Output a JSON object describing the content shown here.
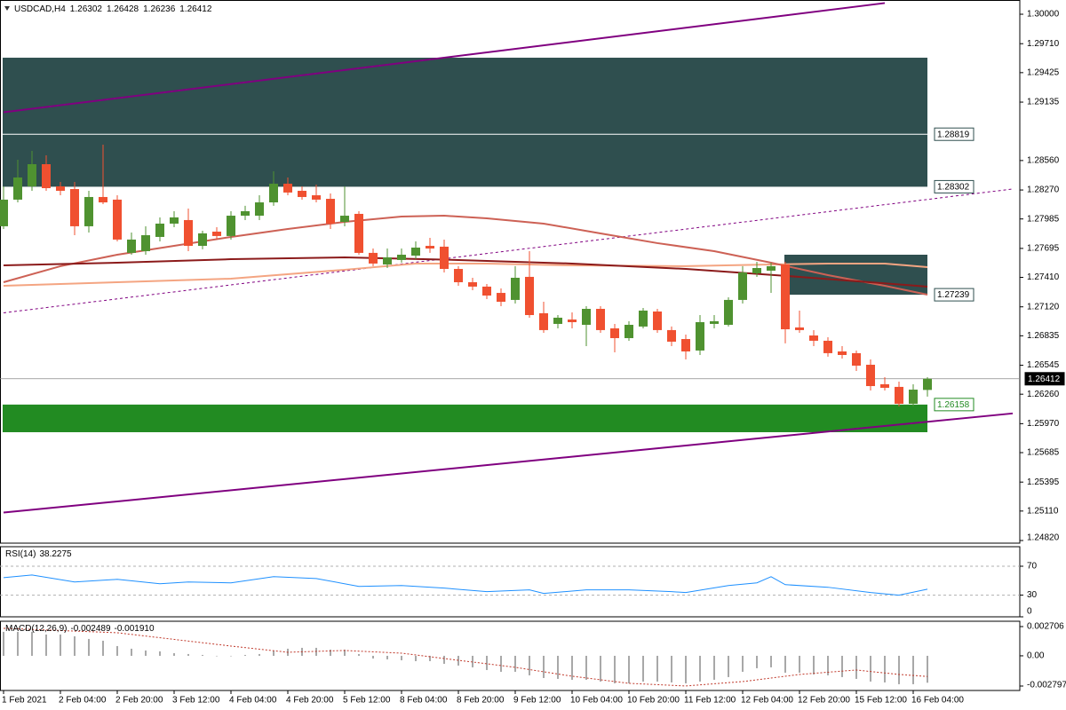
{
  "chart_data": [
    {
      "type": "candlestick",
      "symbol": "USDCAD,H4",
      "categories": [
        "1 Feb 2021",
        null,
        null,
        null,
        "2 Feb 04:00",
        null,
        null,
        null,
        "2 Feb 20:00",
        null,
        null,
        null,
        "3 Feb 12:00",
        null,
        null,
        null,
        "4 Feb 04:00",
        null,
        null,
        null,
        "4 Feb 20:00",
        null,
        null,
        null,
        "5 Feb 12:00",
        null,
        null,
        null,
        "8 Feb 04:00",
        null,
        null,
        null,
        "8 Feb 20:00",
        null,
        null,
        null,
        "9 Feb 12:00",
        null,
        null,
        null,
        "10 Feb 04:00",
        null,
        null,
        null,
        "10 Feb 20:00",
        null,
        null,
        null,
        "11 Feb 12:00",
        null,
        null,
        null,
        "12 Feb 04:00",
        null,
        null,
        null,
        "12 Feb 20:00",
        null,
        null,
        null,
        "15 Feb 12:00",
        null,
        null,
        null,
        "16 Feb 04:00",
        null
      ],
      "open": [
        1.27913,
        1.28175,
        1.28306,
        1.28524,
        1.28306,
        1.28279,
        1.27913,
        1.28201,
        1.28175,
        1.27651,
        1.27668,
        1.27808,
        1.27939,
        1.27974,
        1.2772,
        1.2786,
        1.27817,
        1.28017,
        1.28017,
        1.28148,
        1.28332,
        1.28262,
        1.28218,
        1.28183,
        1.27956,
        1.28035,
        1.27651,
        1.27537,
        1.27581,
        1.27624,
        1.2772,
        1.27712,
        1.27493,
        1.27362,
        1.27319,
        1.27257,
        1.27188,
        1.27415,
        1.27057,
        1.26952,
        1.26995,
        1.26943,
        1.271,
        1.26908,
        1.26812,
        1.26926,
        1.27074,
        1.26891,
        1.26803,
        1.2669,
        1.26952,
        1.26943,
        1.27188,
        1.2745,
        1.27476,
        1.27537,
        1.26917,
        1.26838,
        1.26786,
        1.26681,
        1.26664,
        1.2655,
        1.26358,
        1.26332,
        1.26166,
        1.26302
      ],
      "high": [
        1.28306,
        1.28568,
        1.28655,
        1.28611,
        1.28349,
        1.28349,
        1.28262,
        1.28716,
        1.28218,
        1.27851,
        1.27913,
        1.28,
        1.28061,
        1.28087,
        1.27869,
        1.27904,
        1.28061,
        1.28114,
        1.28218,
        1.28454,
        1.28393,
        1.28306,
        1.28323,
        1.28236,
        1.28306,
        1.28061,
        1.27694,
        1.27694,
        1.27694,
        1.27764,
        1.27799,
        1.27782,
        1.2752,
        1.27406,
        1.27345,
        1.27301,
        1.2752,
        1.27668,
        1.2717,
        1.27039,
        1.27065,
        1.27126,
        1.27126,
        1.26952,
        1.26978,
        1.27109,
        1.271,
        1.26926,
        1.26847,
        1.27039,
        1.27039,
        1.27214,
        1.2752,
        1.27563,
        1.27554,
        1.27563,
        1.27083,
        1.26891,
        1.26821,
        1.26733,
        1.2669,
        1.26602,
        1.26428,
        1.26384,
        1.26358,
        1.26428
      ],
      "low": [
        1.27886,
        1.28148,
        1.28262,
        1.28262,
        1.28218,
        1.27825,
        1.27851,
        1.28131,
        1.27764,
        1.27633,
        1.27633,
        1.27764,
        1.27904,
        1.27668,
        1.27686,
        1.27782,
        1.27782,
        1.27974,
        1.27974,
        1.28114,
        1.28218,
        1.28175,
        1.28148,
        1.27886,
        1.27913,
        1.27633,
        1.2752,
        1.27502,
        1.27554,
        1.27589,
        1.27651,
        1.27458,
        1.27327,
        1.27284,
        1.27196,
        1.27126,
        1.27153,
        1.27013,
        1.26864,
        1.26908,
        1.26908,
        1.26733,
        1.26864,
        1.26672,
        1.26786,
        1.26908,
        1.26864,
        1.26733,
        1.26602,
        1.26646,
        1.26908,
        1.26926,
        1.27153,
        1.27415,
        1.27257,
        1.2676,
        1.26864,
        1.26733,
        1.26629,
        1.26611,
        1.26489,
        1.26297,
        1.26297,
        1.26139,
        1.26139,
        1.26236
      ],
      "close": [
        1.28175,
        1.28393,
        1.28524,
        1.28288,
        1.28262,
        1.27913,
        1.28201,
        1.28148,
        1.27782,
        1.27782,
        1.27825,
        1.27939,
        1.28,
        1.2772,
        1.27843,
        1.27817,
        1.28017,
        1.28061,
        1.28148,
        1.28332,
        1.28245,
        1.28201,
        1.28175,
        1.27939,
        1.28017,
        1.27651,
        1.27546,
        1.27607,
        1.27633,
        1.27703,
        1.27694,
        1.27493,
        1.27362,
        1.27319,
        1.27231,
        1.2717,
        1.27406,
        1.27039,
        1.26891,
        1.27013,
        1.26969,
        1.271,
        1.26891,
        1.26812,
        1.26943,
        1.27083,
        1.26891,
        1.26777,
        1.26681,
        1.26969,
        1.26978,
        1.27188,
        1.27458,
        1.27502,
        1.2752,
        1.26899,
        1.26891,
        1.26786,
        1.26664,
        1.26646,
        1.26541,
        1.2634,
        1.26323,
        1.26166,
        1.26305,
        1.26412
      ],
      "up_color": "#4f9230",
      "down_color": "#f05030",
      "ylim": [
        1.24794,
        1.3014
      ],
      "yticks": [
        {
          "value": 1.3,
          "label": "1.30000"
        },
        {
          "value": 1.2971,
          "label": "1.29710"
        },
        {
          "value": 1.29425,
          "label": "1.29425"
        },
        {
          "value": 1.29135,
          "label": "1.29135"
        },
        {
          "value": 1.2856,
          "label": "1.28560"
        },
        {
          "value": 1.2827,
          "label": "1.28270"
        },
        {
          "value": 1.27985,
          "label": "1.27985"
        },
        {
          "value": 1.27695,
          "label": "1.27695"
        },
        {
          "value": 1.2741,
          "label": "1.27410"
        },
        {
          "value": 1.2712,
          "label": "1.27120"
        },
        {
          "value": 1.26835,
          "label": "1.26835"
        },
        {
          "value": 1.26545,
          "label": "1.26545"
        },
        {
          "value": 1.2626,
          "label": "1.26260"
        },
        {
          "value": 1.2597,
          "label": "1.25970"
        },
        {
          "value": 1.25685,
          "label": "1.25685"
        },
        {
          "value": 1.25395,
          "label": "1.25395"
        },
        {
          "value": 1.2511,
          "label": "1.25110"
        },
        {
          "value": 1.2482,
          "label": "1.24820"
        }
      ],
      "moving_averages": [
        {
          "color": "#f4a582",
          "x": [
            0,
            8,
            16,
            24,
            29,
            34,
            40,
            48,
            54,
            58,
            62,
            65
          ],
          "values": [
            1.27327,
            1.27362,
            1.27397,
            1.27485,
            1.27546,
            1.27546,
            1.27528,
            1.2752,
            1.27537,
            1.27546,
            1.27546,
            1.27511
          ]
        },
        {
          "color": "#cd6155",
          "x": [
            0,
            4,
            8,
            12,
            16,
            20,
            24,
            28,
            31,
            34,
            38,
            42,
            46,
            50,
            54,
            58,
            62,
            65
          ],
          "values": [
            1.27362,
            1.2752,
            1.27633,
            1.2772,
            1.27808,
            1.27886,
            1.27956,
            1.28009,
            1.28017,
            1.27991,
            1.27939,
            1.27843,
            1.27747,
            1.27668,
            1.27554,
            1.27432,
            1.27327,
            1.2724
          ]
        },
        {
          "color": "#8b1a1a",
          "x": [
            0,
            8,
            16,
            24,
            32,
            40,
            48,
            56,
            65
          ],
          "values": [
            1.27528,
            1.27554,
            1.27589,
            1.27607,
            1.27581,
            1.27546,
            1.27493,
            1.27415,
            1.27319
          ]
        }
      ],
      "trendlines": [
        {
          "color": "#800080",
          "style": "solid",
          "x": [
            0,
            62
          ],
          "values": [
            1.29035,
            1.3011
          ]
        },
        {
          "color": "#800080",
          "style": "solid",
          "x": [
            0,
            71
          ],
          "values": [
            1.25095,
            1.26071
          ]
        },
        {
          "color": "#800080",
          "style": "dotted",
          "x": [
            0,
            71
          ],
          "values": [
            1.27061,
            1.2828
          ]
        }
      ],
      "zones": [
        {
          "color": "#2f4f4f",
          "from": 0,
          "to": 65,
          "top": 1.29572,
          "bottom": 1.28302,
          "label_edge": "bottom"
        },
        {
          "color": "#2f4f4f",
          "from": 55,
          "to": 65,
          "top": 1.27633,
          "bottom": 1.27239,
          "label_edge": "bottom"
        },
        {
          "color": "#228b22",
          "from": 0,
          "to": 65,
          "top": 1.26158,
          "bottom": 1.25886,
          "label_edge": "top"
        }
      ],
      "line_levels": [
        1.28819
      ],
      "grid": false
    },
    {
      "type": "line",
      "title": "RSI(14)",
      "color": "#1e90ff",
      "x": [
        0,
        2,
        5,
        8,
        11,
        13,
        16,
        19,
        22,
        25,
        28,
        31,
        34,
        37,
        38,
        41,
        44,
        47,
        48,
        51,
        53,
        54,
        55,
        58,
        61,
        63,
        65
      ],
      "values": [
        54.2,
        57.9,
        48.2,
        51.8,
        45.8,
        48.2,
        47,
        55.5,
        53,
        42.1,
        43.3,
        39.7,
        34.8,
        37.3,
        32.4,
        37.3,
        37.3,
        34.8,
        33.6,
        43.3,
        47,
        55.5,
        44.5,
        40.9,
        33.6,
        30,
        38.2275
      ],
      "ylim": [
        0,
        97
      ],
      "yticks": [
        0,
        30,
        70
      ],
      "levels": [
        30,
        70
      ]
    },
    {
      "type": "bar",
      "title": "MACD(12,26,9)",
      "color": "#a8a8a8",
      "values": [
        0.002217,
        0.002217,
        0.002217,
        0.00197,
        0.00197,
        0.001806,
        0.00156,
        0.001396,
        0.000903,
        0.000657,
        0.000493,
        0.000411,
        0.000246,
        0.000164,
        8.2e-05,
        0,
        0,
        8.2e-05,
        0.000164,
        0.000493,
        0.000657,
        0.000739,
        0.000739,
        0.000575,
        0.000575,
        0.000164,
        -0.000246,
        -0.000328,
        -0.000411,
        -0.000493,
        -0.000493,
        -0.000739,
        -0.000903,
        -0.001067,
        -0.001314,
        -0.001478,
        -0.001478,
        -0.001806,
        -0.002053,
        -0.002135,
        -0.002217,
        -0.002217,
        -0.002381,
        -0.002545,
        -0.002545,
        -0.002381,
        -0.002381,
        -0.002463,
        -0.002545,
        -0.002381,
        -0.002217,
        -0.00197,
        -0.001478,
        -0.001149,
        -0.001067,
        -0.00156,
        -0.00156,
        -0.001724,
        -0.001806,
        -0.00197,
        -0.002135,
        -0.002381,
        -0.002463,
        -0.002627,
        -0.002627,
        -0.002489
      ],
      "signal": {
        "color": "#c0392b",
        "x": [
          0,
          8,
          16,
          20,
          24,
          28,
          32,
          36,
          40,
          44,
          48,
          52,
          56,
          60,
          63,
          65
        ],
        "values": [
          0.002545,
          0.002135,
          0.000903,
          0.000328,
          0.000493,
          0.000246,
          -0.000411,
          -0.001067,
          -0.001888,
          -0.002545,
          -0.002791,
          -0.002381,
          -0.001724,
          -0.001314,
          -0.001724,
          -0.00191
        ],
        "value_labels": [
          null,
          null,
          null,
          null,
          null,
          null,
          null,
          null,
          null,
          null,
          null,
          null,
          null,
          null,
          null,
          "-0.001910"
        ]
      },
      "ylim": [
        -0.003207,
        0.003198
      ],
      "yticks": [
        {
          "value": 0.002706,
          "label": "0.002706"
        },
        {
          "value": 0,
          "label": "0.00"
        },
        {
          "value": -0.002797,
          "label": "-0.002797"
        }
      ]
    }
  ]
}
